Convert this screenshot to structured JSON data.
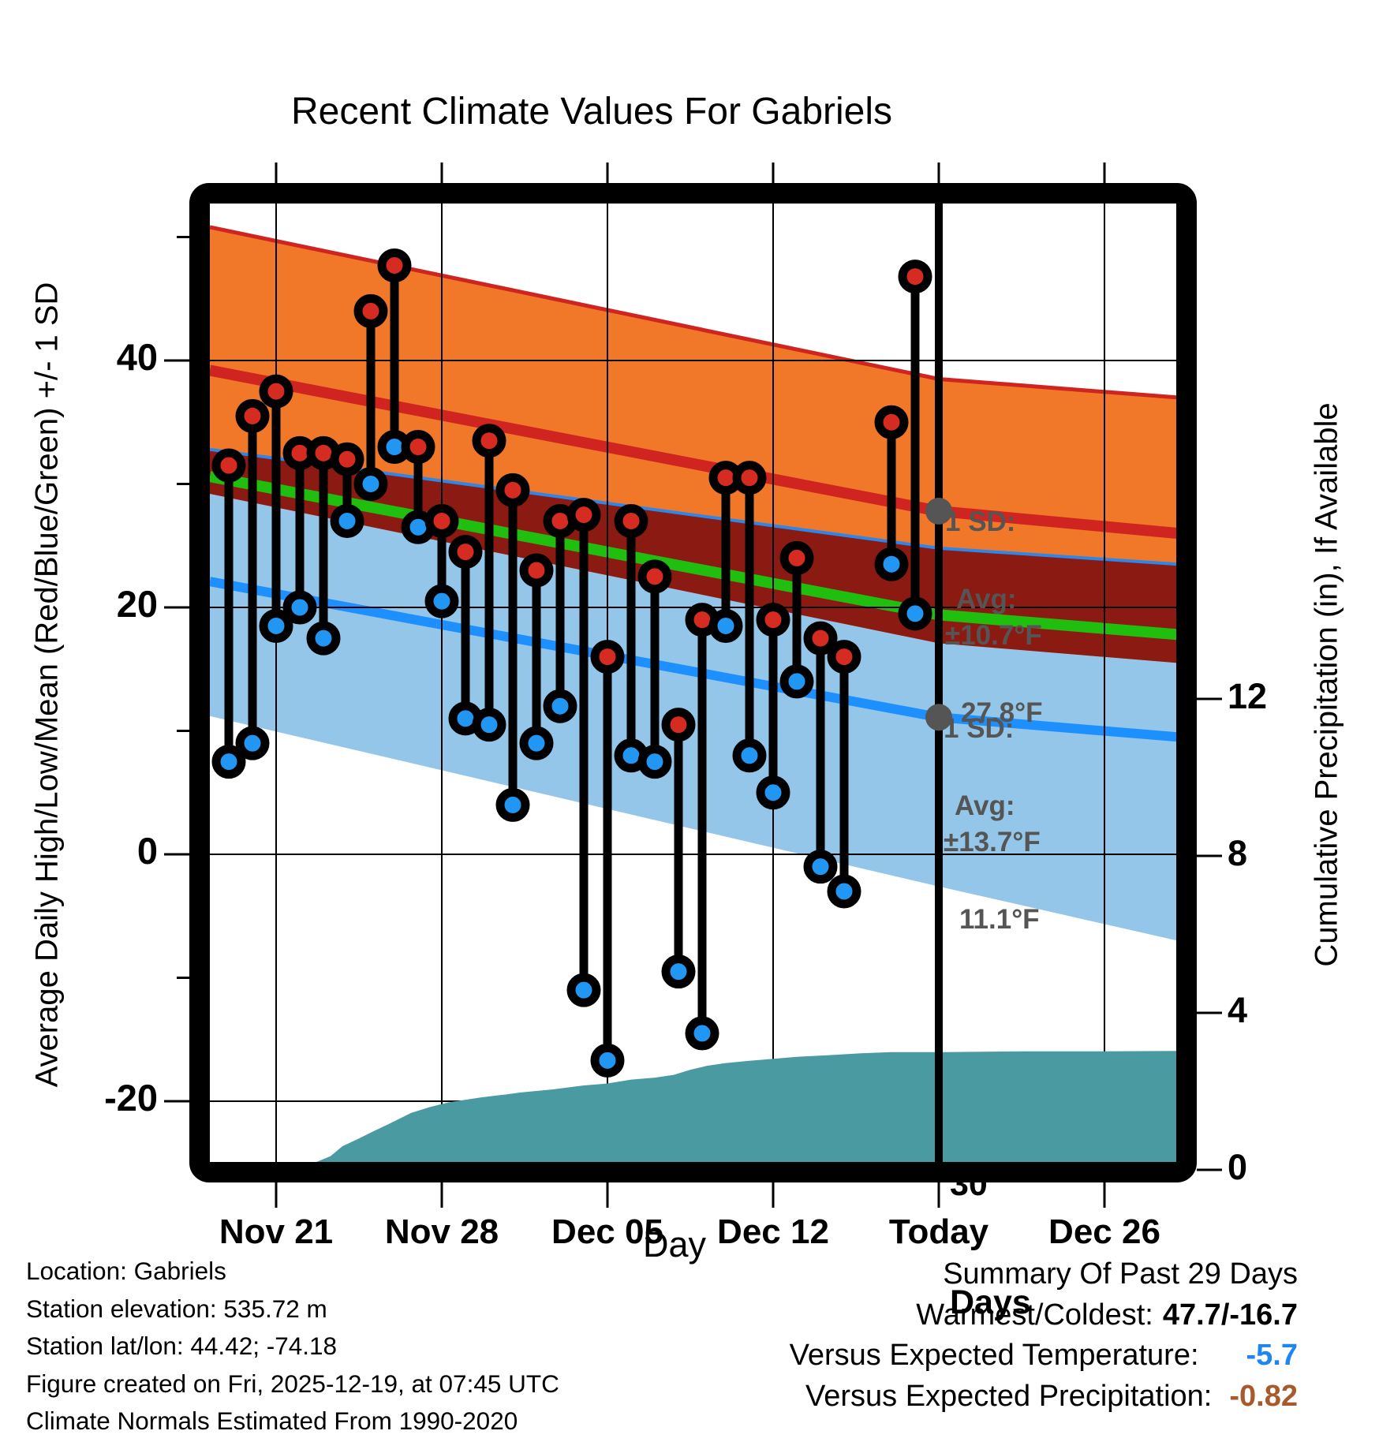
{
  "title": "Recent Climate Values For Gabriels",
  "axes": {
    "x_label": "Day",
    "y_left_label": "Average Daily High/Low/Mean (Red/Blue/Green) +/- 1 SD",
    "y_right_label": "Cumulative Precipitation (in), If Available"
  },
  "annotations": {
    "sd_high_line1": "1 SD:",
    "sd_high_line2": "±10.7°F",
    "avg_high_line1": "Avg:",
    "avg_high_line2": "27.8°F",
    "sd_low_line1": "1 SD:",
    "sd_low_line2": "±13.7°F",
    "avg_low_line1": "Avg:",
    "avg_low_line2": "11.1°F",
    "days_marker_line1": "30",
    "days_marker_line2": "Days"
  },
  "info": {
    "location": "Location: Gabriels",
    "elevation": "Station elevation: 535.72 m",
    "latlon": "Station lat/lon: 44.42; -74.18",
    "created": "Figure created on Fri, 2025-12-19, at 07:45 UTC",
    "normals": "Climate Normals Estimated From 1990-2020"
  },
  "summary": {
    "heading": "Summary Of Past 29 Days",
    "warmest_label": "Warmest/Coldest:",
    "warmest_value": "47.7/-16.7",
    "temp_label": "Versus Expected Temperature:",
    "temp_value": "-5.7",
    "temp_color": "#1E86F0",
    "precip_label": "Versus Expected Precipitation:",
    "precip_value": "-0.82",
    "precip_color": "#A85A2D"
  },
  "chart_data": {
    "type": "stem+band+area",
    "title": "Recent Climate Values For Gabriels",
    "xlabel": "Day",
    "ylabel_left": "Average Daily High/Low/Mean (Red/Blue/Green) +/- 1 SD",
    "ylabel_right": "Cumulative Precipitation (in), If Available",
    "y_left_ticks": [
      40,
      20,
      0,
      -20
    ],
    "y_left_minor_ticks": [
      50,
      30,
      10,
      -10
    ],
    "y_left_range": [
      -25.5,
      55
    ],
    "y_right_ticks": [
      12,
      8,
      4,
      0
    ],
    "y_right_range": [
      0,
      25
    ],
    "x_ticks": [
      {
        "label": "Nov 21",
        "day": 2
      },
      {
        "label": "Nov 28",
        "day": 9
      },
      {
        "label": "Dec 05",
        "day": 16
      },
      {
        "label": "Dec 12",
        "day": 23
      },
      {
        "label": "Today",
        "day": 30
      },
      {
        "label": "Dec 26",
        "day": 37
      }
    ],
    "today_day": 30,
    "today_avg_high": 27.8,
    "today_sd_high": 10.7,
    "today_avg_low": 11.1,
    "today_sd_low": 13.7,
    "daily": [
      {
        "date": "Nov 19",
        "day": 0,
        "high": 31.5,
        "low": 7.5
      },
      {
        "date": "Nov 20",
        "day": 1,
        "high": 35.5,
        "low": 9.0
      },
      {
        "date": "Nov 21",
        "day": 2,
        "high": 37.5,
        "low": 18.5
      },
      {
        "date": "Nov 22",
        "day": 3,
        "high": 32.5,
        "low": 20.0
      },
      {
        "date": "Nov 23",
        "day": 4,
        "high": 32.5,
        "low": 17.5
      },
      {
        "date": "Nov 24",
        "day": 5,
        "high": 32.0,
        "low": 27.0
      },
      {
        "date": "Nov 25",
        "day": 6,
        "high": 44.0,
        "low": 30.0
      },
      {
        "date": "Nov 26",
        "day": 7,
        "high": 47.7,
        "low": 33.0
      },
      {
        "date": "Nov 27",
        "day": 8,
        "high": 33.0,
        "low": 26.5
      },
      {
        "date": "Nov 28",
        "day": 9,
        "high": 27.0,
        "low": 20.5
      },
      {
        "date": "Nov 29",
        "day": 10,
        "high": 24.5,
        "low": 11.0
      },
      {
        "date": "Nov 30",
        "day": 11,
        "high": 33.5,
        "low": 10.5
      },
      {
        "date": "Dec 01",
        "day": 12,
        "high": 29.5,
        "low": 4.0
      },
      {
        "date": "Dec 02",
        "day": 13,
        "high": 23.0,
        "low": 9.0
      },
      {
        "date": "Dec 03",
        "day": 14,
        "high": 27.0,
        "low": 12.0
      },
      {
        "date": "Dec 04",
        "day": 15,
        "high": 27.5,
        "low": -11.0
      },
      {
        "date": "Dec 05",
        "day": 16,
        "high": 16.0,
        "low": -16.7
      },
      {
        "date": "Dec 06",
        "day": 17,
        "high": 27.0,
        "low": 8.0
      },
      {
        "date": "Dec 07",
        "day": 18,
        "high": 22.5,
        "low": 7.5
      },
      {
        "date": "Dec 08",
        "day": 19,
        "high": 10.5,
        "low": -9.5
      },
      {
        "date": "Dec 09",
        "day": 20,
        "high": 19.0,
        "low": -14.5
      },
      {
        "date": "Dec 10",
        "day": 21,
        "high": 30.5,
        "low": 18.5
      },
      {
        "date": "Dec 11",
        "day": 22,
        "high": 30.5,
        "low": 8.0
      },
      {
        "date": "Dec 12",
        "day": 23,
        "high": 19.0,
        "low": 5.0
      },
      {
        "date": "Dec 13",
        "day": 24,
        "high": 24.0,
        "low": 14.0
      },
      {
        "date": "Dec 14",
        "day": 25,
        "high": 17.5,
        "low": -1.0
      },
      {
        "date": "Dec 15",
        "day": 26,
        "high": 16.0,
        "low": -3.0
      },
      {
        "date": "Dec 17",
        "day": 28,
        "high": 35.0,
        "low": 23.5
      },
      {
        "date": "Dec 18",
        "day": 29,
        "high": 46.8,
        "low": 19.5
      }
    ],
    "bands": {
      "days": [
        -0.8,
        30,
        40.1
      ],
      "high_plus_sd": [
        50.8,
        38.5,
        37.0
      ],
      "high_mean": [
        39.2,
        27.8,
        26.0
      ],
      "low_plus_sd": [
        32.8,
        24.8,
        23.5
      ],
      "mid_mean": [
        30.6,
        19.4,
        17.8
      ],
      "high_minus_sd": [
        29.2,
        17.1,
        15.5
      ],
      "low_mean": [
        22.1,
        11.1,
        9.5
      ],
      "low_minus_sd": [
        11.2,
        -2.6,
        -7.0
      ]
    },
    "precip_cumulative": [
      [
        1.3,
        0.02
      ],
      [
        2.3,
        0.06
      ],
      [
        3.5,
        0.15
      ],
      [
        4.3,
        0.35
      ],
      [
        4.8,
        0.6
      ],
      [
        5.5,
        0.8
      ],
      [
        6.0,
        0.95
      ],
      [
        6.7,
        1.15
      ],
      [
        7.7,
        1.45
      ],
      [
        8.5,
        1.6
      ],
      [
        9.3,
        1.72
      ],
      [
        10.7,
        1.85
      ],
      [
        11.7,
        1.92
      ],
      [
        12.3,
        1.97
      ],
      [
        13.7,
        2.05
      ],
      [
        15.0,
        2.15
      ],
      [
        16.0,
        2.2
      ],
      [
        17.0,
        2.3
      ],
      [
        18.0,
        2.35
      ],
      [
        18.8,
        2.42
      ],
      [
        19.5,
        2.55
      ],
      [
        20.2,
        2.65
      ],
      [
        21.0,
        2.72
      ],
      [
        22.0,
        2.78
      ],
      [
        23.0,
        2.83
      ],
      [
        24.0,
        2.88
      ],
      [
        25.3,
        2.92
      ],
      [
        26.7,
        2.97
      ],
      [
        28.0,
        3.0
      ],
      [
        30.3,
        3.0
      ],
      [
        33.7,
        3.02
      ],
      [
        37.0,
        3.02
      ],
      [
        40.1,
        3.03
      ]
    ],
    "colors": {
      "band_orange": "#F07828",
      "band_blue": "#93C6E9",
      "band_darkred": "#8B1A12",
      "line_red": "#D02420",
      "line_green": "#1FBE0F",
      "line_blue": "#1E8FFF",
      "edge_blue": "#2E86E8",
      "red_dot": "#D52B20",
      "blue_dot": "#2196F3",
      "teal": "#4A9AA2",
      "gray": "#555555",
      "stem": "#000000",
      "grid": "#000000"
    }
  }
}
